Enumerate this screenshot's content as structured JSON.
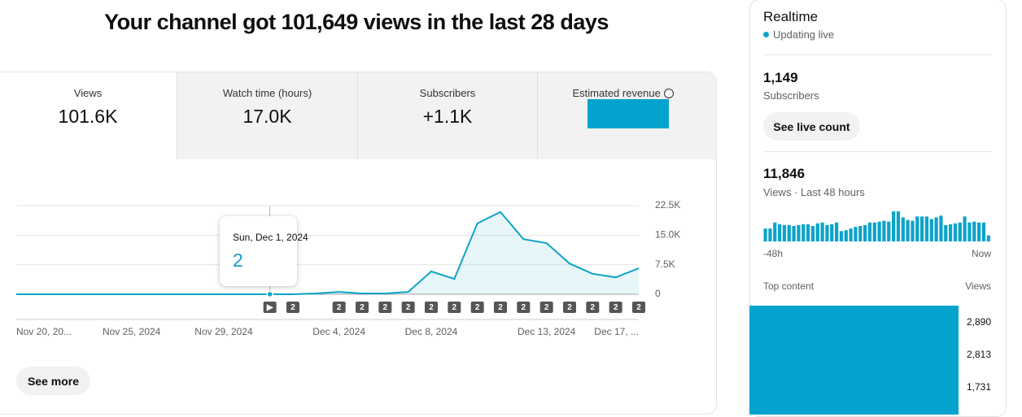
{
  "header": {
    "title": "Your channel got 101,649 views in the last 28 days"
  },
  "metrics": [
    {
      "label": "Views",
      "value": "101.6K"
    },
    {
      "label": "Watch time (hours)",
      "value": "17.0K"
    },
    {
      "label": "Subscribers",
      "value": "+1.1K"
    },
    {
      "label": "Estimated revenue"
    }
  ],
  "chart_data": [
    {
      "type": "line",
      "categories": [
        "Nov 20, 20...",
        null,
        null,
        null,
        null,
        "Nov 25, 2024",
        null,
        null,
        null,
        "Nov 29, 2024",
        null,
        null,
        null,
        null,
        "Dec 4, 2024",
        null,
        null,
        null,
        "Dec 8, 2024",
        null,
        null,
        null,
        null,
        "Dec 13, 2024",
        null,
        null,
        null,
        "Dec 17, ..."
      ],
      "series": [
        {
          "name": "Views",
          "color": "#0ea3c8",
          "values": [
            0,
            0,
            0,
            0,
            0,
            0,
            0,
            0,
            0,
            0,
            0,
            2,
            0,
            200,
            600,
            200,
            200,
            600,
            5800,
            3900,
            18000,
            20900,
            14000,
            13000,
            7800,
            5200,
            4300,
            6600
          ]
        }
      ],
      "ylim": [
        0,
        22500
      ],
      "yticks": [
        0,
        {
          "value": 7500,
          "label": "7.5K"
        },
        {
          "value": 15000,
          "label": "15.0K"
        },
        {
          "value": 22500,
          "label": "22.5K"
        }
      ],
      "grid": true,
      "tooltip_title": "Sun, Dec 1, 2024",
      "event_markers": [
        null,
        null,
        null,
        null,
        null,
        null,
        null,
        null,
        null,
        null,
        null,
        "▶",
        "2",
        null,
        "2",
        "2",
        "2",
        "2",
        "2",
        "2",
        "2",
        "2",
        "2",
        "2",
        "2",
        "2",
        "2",
        "2"
      ]
    },
    {
      "type": "bar",
      "categories": [
        "-48h",
        null,
        null,
        null,
        null,
        null,
        null,
        null,
        null,
        null,
        null,
        null,
        null,
        null,
        null,
        null,
        null,
        null,
        null,
        null,
        null,
        null,
        null,
        null,
        null,
        null,
        null,
        null,
        null,
        null,
        null,
        null,
        null,
        null,
        null,
        null,
        null,
        null,
        null,
        null,
        null,
        null,
        null,
        null,
        null,
        null,
        null,
        "Now"
      ],
      "values": [
        165,
        165,
        242,
        220,
        209,
        209,
        198,
        209,
        220,
        220,
        198,
        231,
        242,
        209,
        220,
        242,
        132,
        143,
        165,
        187,
        198,
        209,
        242,
        242,
        253,
        264,
        253,
        385,
        385,
        308,
        275,
        264,
        319,
        319,
        319,
        286,
        308,
        330,
        209,
        220,
        231,
        242,
        319,
        242,
        253,
        242,
        242,
        77
      ],
      "color": "#0ea3c8"
    }
  ],
  "see_more": "See more",
  "realtime": {
    "title": "Realtime",
    "status": "Updating live",
    "subscribers": "1,149",
    "subscribers_label": "Subscribers",
    "live_button": "See live count",
    "views": "11,846",
    "views_label": "Views · Last 48 hours"
  },
  "top_content": {
    "header": "Top content",
    "views_header": "Views",
    "rows": [
      {
        "views": "2,890"
      },
      {
        "views": "2,813"
      },
      {
        "views": "1,731"
      }
    ]
  }
}
